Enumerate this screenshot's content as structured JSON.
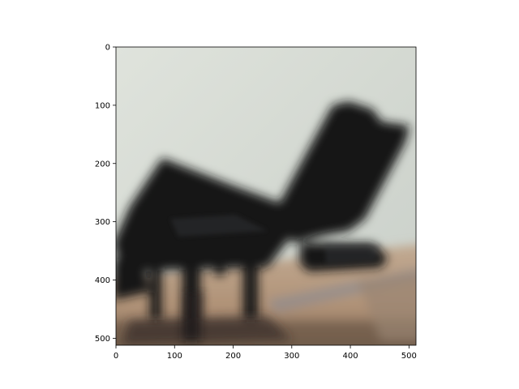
{
  "chart_data": {
    "type": "image",
    "title": "",
    "xlabel": "",
    "ylabel": "",
    "xlim": [
      0,
      512
    ],
    "ylim": [
      512,
      0
    ],
    "x_ticks": [
      0,
      100,
      200,
      300,
      400,
      500
    ],
    "y_ticks": [
      0,
      100,
      200,
      300,
      400,
      500
    ],
    "x_tick_labels": [
      "0",
      "100",
      "200",
      "300",
      "400",
      "500"
    ],
    "y_tick_labels": [
      "0",
      "100",
      "200",
      "300",
      "400",
      "500"
    ],
    "grid": false,
    "legend": "none",
    "image_description_colors": {
      "sky": "#d9ded8",
      "structure": "#101314",
      "ground": "#b89e84",
      "shadow": "#2a2522"
    }
  }
}
